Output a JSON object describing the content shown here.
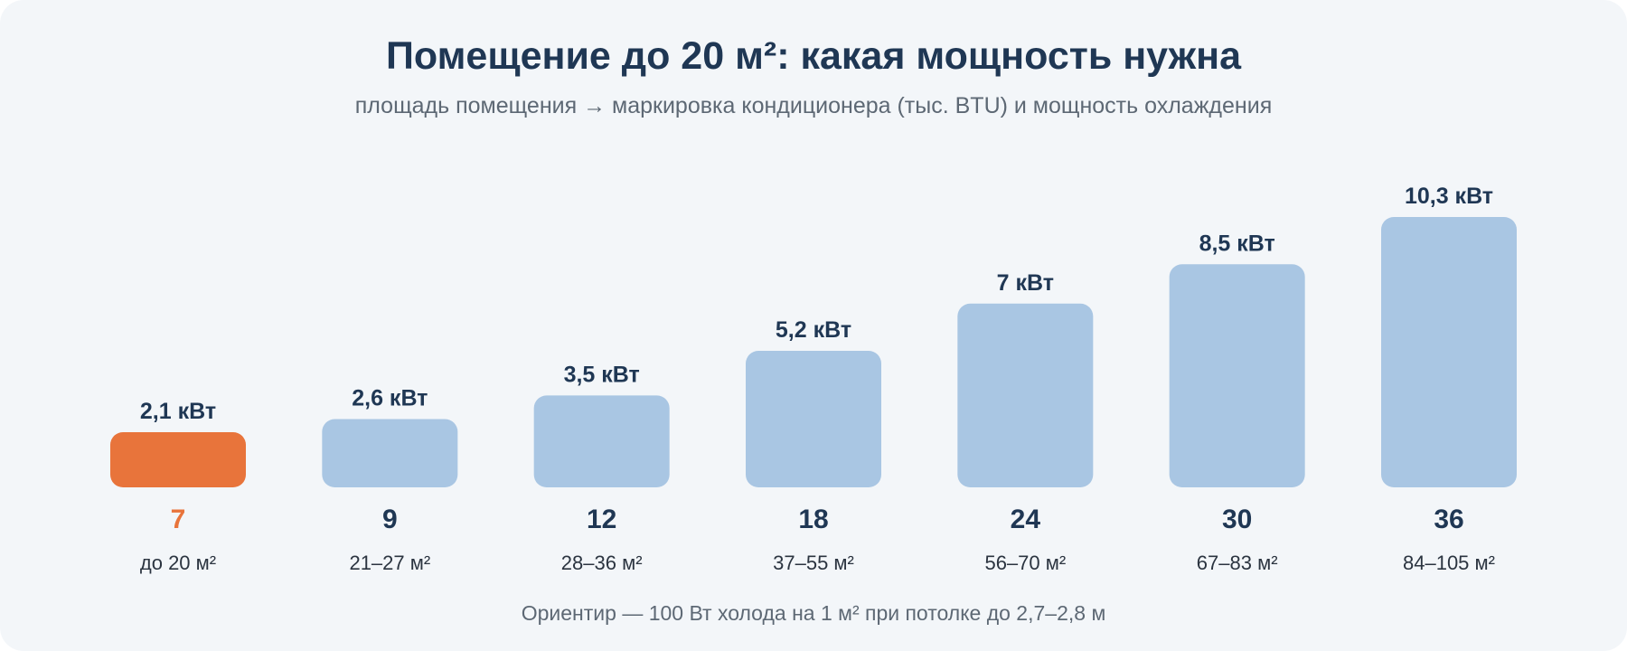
{
  "chart_data": {
    "type": "bar",
    "title": "Помещение до 20 м²: какая мощность нужна",
    "subtitle": "площадь помещения → маркировка кондиционера (тыс. BTU) и мощность охлаждения",
    "categories": [
      "7",
      "9",
      "12",
      "18",
      "24",
      "30",
      "36"
    ],
    "area_labels": [
      "до 20 м²",
      "21–27 м²",
      "28–36 м²",
      "37–55 м²",
      "56–70 м²",
      "67–83 м²",
      "84–105 м²"
    ],
    "values": [
      2.1,
      2.6,
      3.5,
      5.2,
      7,
      8.5,
      10.3
    ],
    "value_labels": [
      "2,1 кВт",
      "2,6 кВт",
      "3,5 кВт",
      "5,2 кВт",
      "7 кВт",
      "8,5 кВт",
      "10,3 кВт"
    ],
    "highlight_index": 0,
    "ylim": [
      0,
      10.3
    ],
    "grid": false,
    "colors": {
      "highlight": "#e8743b",
      "bar": "#a9c6e3",
      "text_dark": "#1f3754"
    }
  },
  "footnote": "Ориентир — 100 Вт холода на 1 м² при потолке до 2,7–2,8 м"
}
